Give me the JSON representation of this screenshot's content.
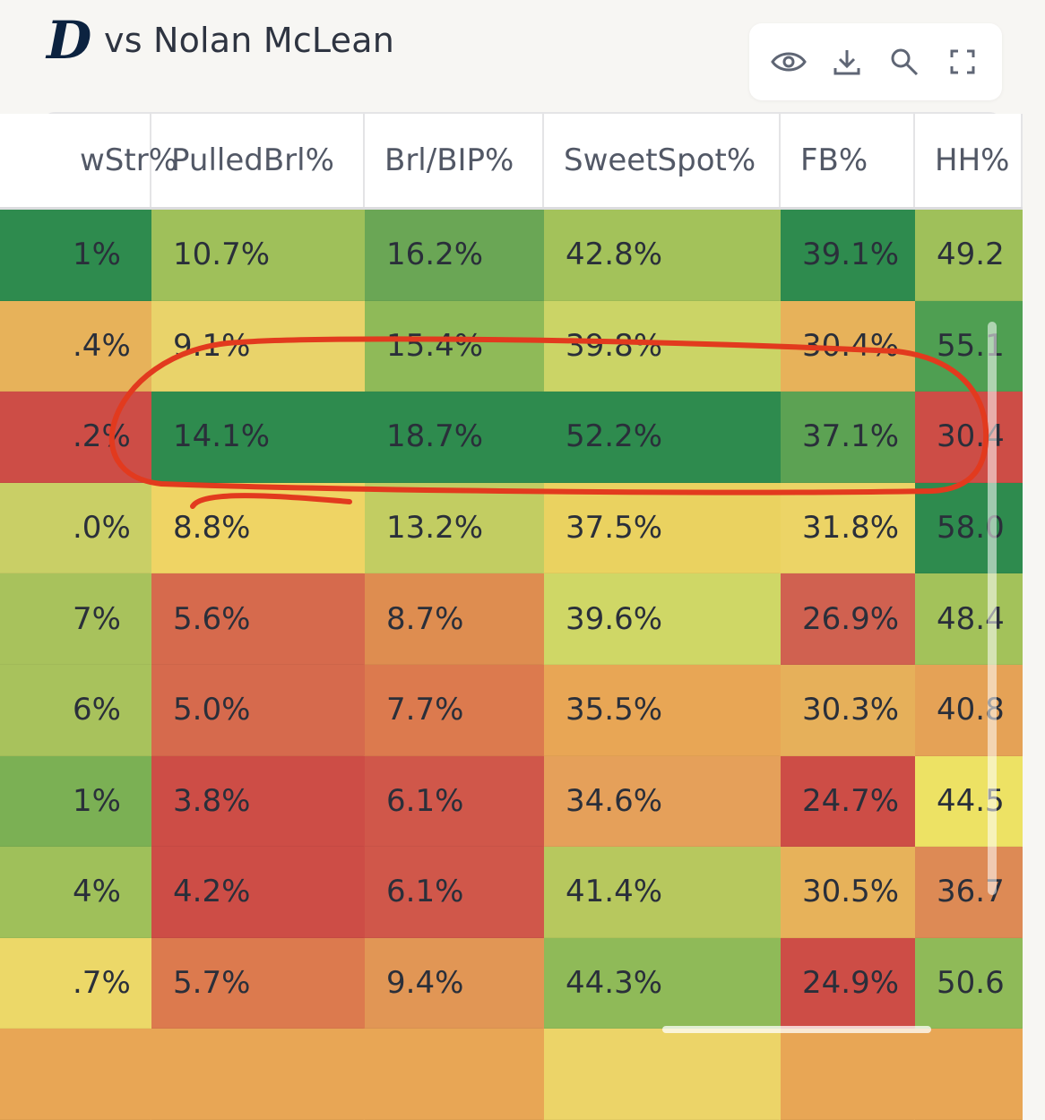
{
  "header": {
    "logo_glyph": "D",
    "title": "vs Nolan McLean"
  },
  "toolbar": {
    "buttons": [
      {
        "icon": "eye-icon"
      },
      {
        "icon": "download-icon"
      },
      {
        "icon": "search-icon"
      },
      {
        "icon": "fullscreen-icon"
      }
    ]
  },
  "table": {
    "columns": [
      "wStr%",
      "PulledBrl%",
      "Brl/BIP%",
      "SweetSpot%",
      "FB%",
      "HH%"
    ],
    "rows": [
      [
        "1%",
        "10.7%",
        "16.2%",
        "42.8%",
        "39.1%",
        "49.2"
      ],
      [
        ".4%",
        "9.1%",
        "15.4%",
        "39.8%",
        "30.4%",
        "55.1"
      ],
      [
        ".2%",
        "14.1%",
        "18.7%",
        "52.2%",
        "37.1%",
        "30.4"
      ],
      [
        ".0%",
        "8.8%",
        "13.2%",
        "37.5%",
        "31.8%",
        "58.0"
      ],
      [
        "7%",
        "5.6%",
        "8.7%",
        "39.6%",
        "26.9%",
        "48.4"
      ],
      [
        "6%",
        "5.0%",
        "7.7%",
        "35.5%",
        "30.3%",
        "40.8"
      ],
      [
        "1%",
        "3.8%",
        "6.1%",
        "34.6%",
        "24.7%",
        "44.5"
      ],
      [
        "4%",
        "4.2%",
        "6.1%",
        "41.4%",
        "30.5%",
        "36.7"
      ],
      [
        ".7%",
        "5.7%",
        "9.4%",
        "44.3%",
        "24.9%",
        "50.6"
      ],
      [
        "",
        "",
        "",
        "",
        "",
        ""
      ]
    ],
    "colors": [
      [
        "#2e8b4e",
        "#9fc05a",
        "#6aa655",
        "#a3c25a",
        "#2e8b4e",
        "#9fc05a"
      ],
      [
        "#e7b25a",
        "#e9d36a",
        "#8fba58",
        "#cbd466",
        "#e7b25a",
        "#4f9f52"
      ],
      [
        "#cd4d46",
        "#2e8b4e",
        "#2e8b4e",
        "#2e8b4e",
        "#5ca253",
        "#cd4d46"
      ],
      [
        "#c9cf66",
        "#efd464",
        "#c2cd62",
        "#ead260",
        "#ecd466",
        "#2e8b4e"
      ],
      [
        "#a8c25c",
        "#d66a4d",
        "#de8d50",
        "#cfd766",
        "#d06150",
        "#a3c25a"
      ],
      [
        "#a8c25c",
        "#d66a4d",
        "#dc7a4e",
        "#e8a655",
        "#e6b05a",
        "#e5a256"
      ],
      [
        "#7bb054",
        "#cd4d46",
        "#d0574a",
        "#e5a05a",
        "#cd4d46",
        "#ede264"
      ],
      [
        "#9fc05a",
        "#cd4d46",
        "#d0574a",
        "#b7c85e",
        "#e7b25a",
        "#dd8a55"
      ],
      [
        "#ecd868",
        "#dc7a4e",
        "#e19655",
        "#8fba58",
        "#cd4d46",
        "#8fba58"
      ],
      [
        "#e8a655",
        "#e8a655",
        "#e8a655",
        "#ecd468",
        "#e8a655",
        "#e8a655"
      ]
    ]
  },
  "annotation": {
    "color": "#e23a1e"
  }
}
